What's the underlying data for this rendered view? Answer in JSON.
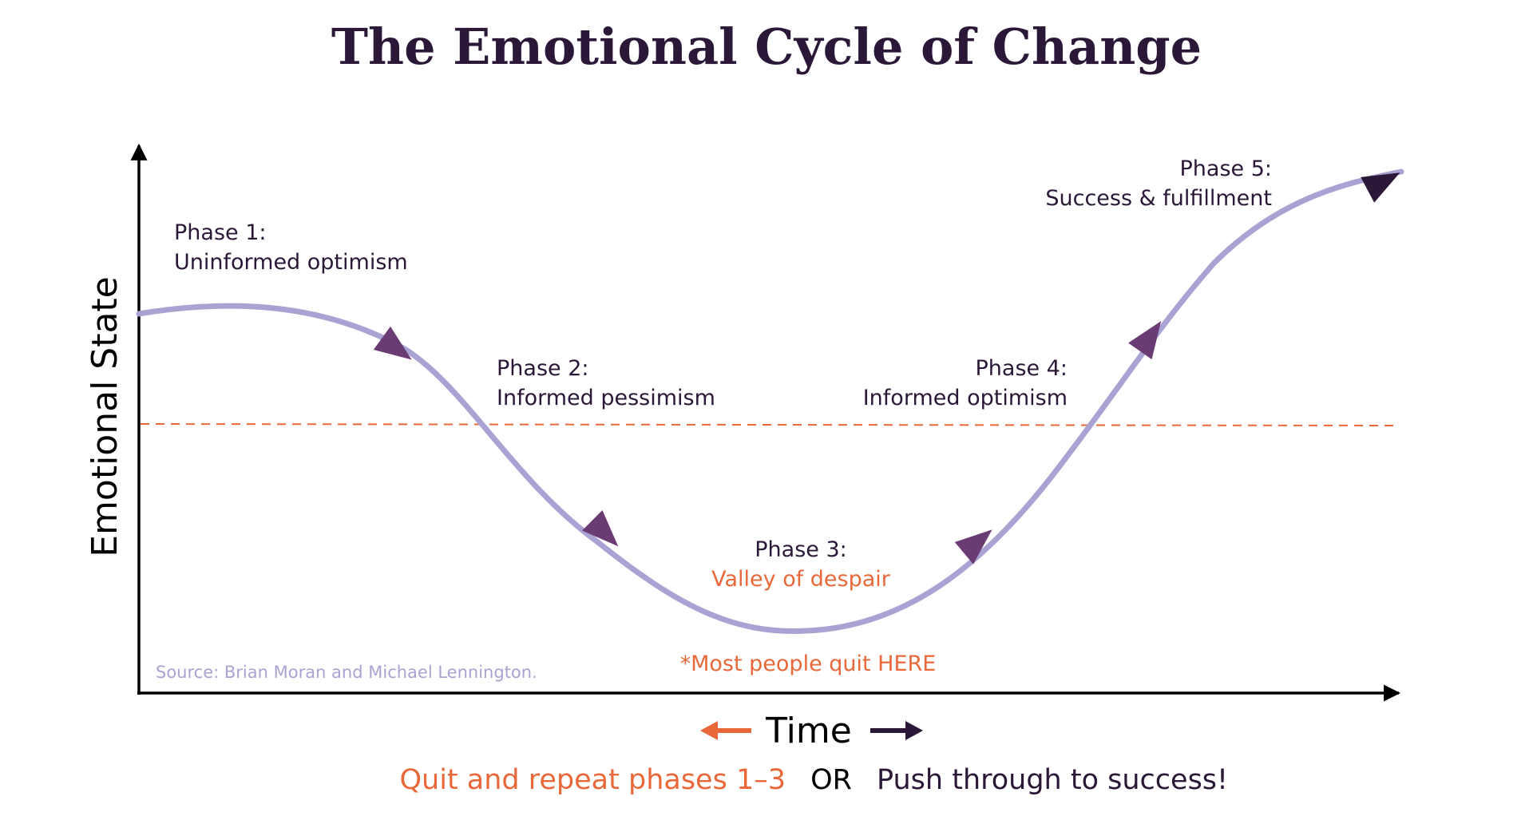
{
  "title": "The Emotional Cycle of Change",
  "y_axis_label": "Emotional State",
  "x_axis_label": "Time",
  "phases": [
    {
      "heading": "Phase 1:",
      "text": "Uninformed optimism"
    },
    {
      "heading": "Phase 2:",
      "text": "Informed pessimism"
    },
    {
      "heading": "Phase 3:",
      "text": "Valley of despair"
    },
    {
      "heading": "Phase 4:",
      "text": "Informed optimism"
    },
    {
      "heading": "Phase 5:",
      "text": "Success & fulfillment"
    }
  ],
  "quit_note": "*Most people quit HERE",
  "source": "Source: Brian Moran and Michael Lennington.",
  "footer": {
    "quit": "Quit and repeat phases 1–3",
    "or": "OR",
    "push": "Push through to success!"
  },
  "colors": {
    "title": "#2b1838",
    "text": "#2b1838",
    "accent_orange": "#e8683a",
    "curve": "#a9a3d4",
    "arrowhead": "#6b3c73",
    "final_arrowhead": "#2b1838",
    "source": "#a9a3d4",
    "axis": "#000000"
  }
}
